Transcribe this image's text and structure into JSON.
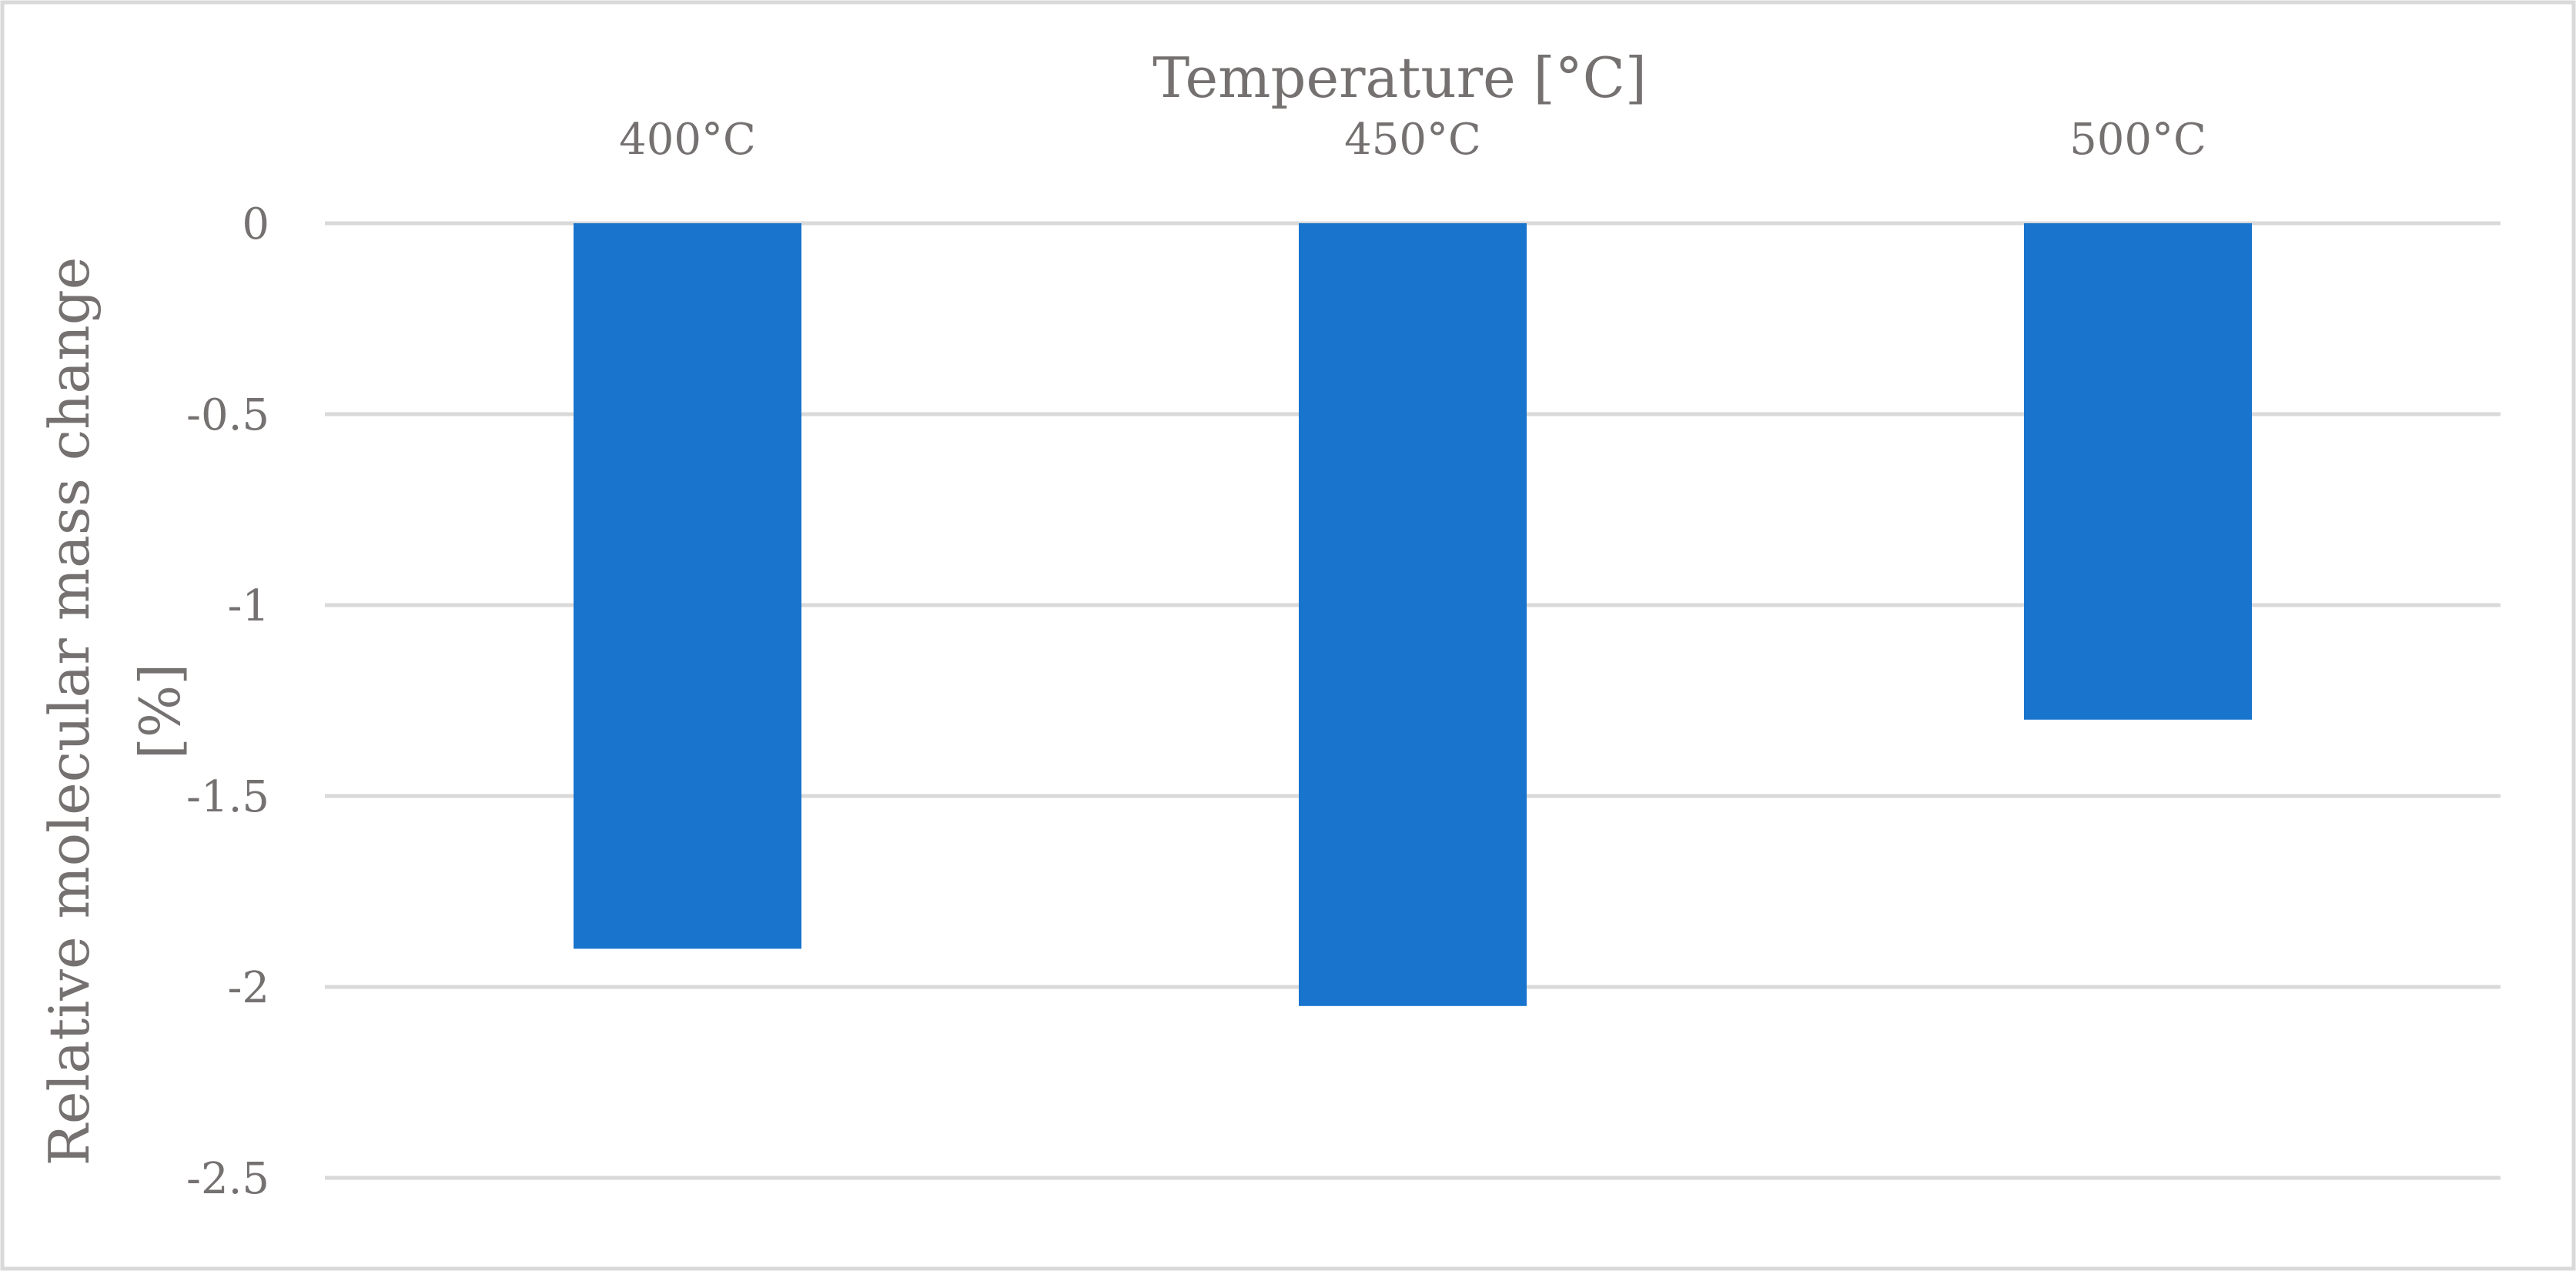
{
  "chart_data": {
    "type": "bar",
    "categories": [
      "400°C",
      "450°C",
      "500°C"
    ],
    "values": [
      -1.9,
      -2.05,
      -1.3
    ],
    "xlabel": "Temperature [°C]",
    "ylabel_lines": [
      "Relative molecular mass change",
      "[%]"
    ],
    "ylim": [
      -2.5,
      0
    ],
    "yticks": [
      0,
      -0.5,
      -1,
      -1.5,
      -2,
      -2.5
    ],
    "ytick_labels": [
      "0",
      "-0.5",
      "-1",
      "-1.5",
      "-2",
      "-2.5"
    ],
    "x_axis_position": "top",
    "grid": true,
    "legend": "none",
    "bar_color": "#1874cd",
    "grid_color": "#d9d9d9",
    "text_color": "#767171"
  }
}
